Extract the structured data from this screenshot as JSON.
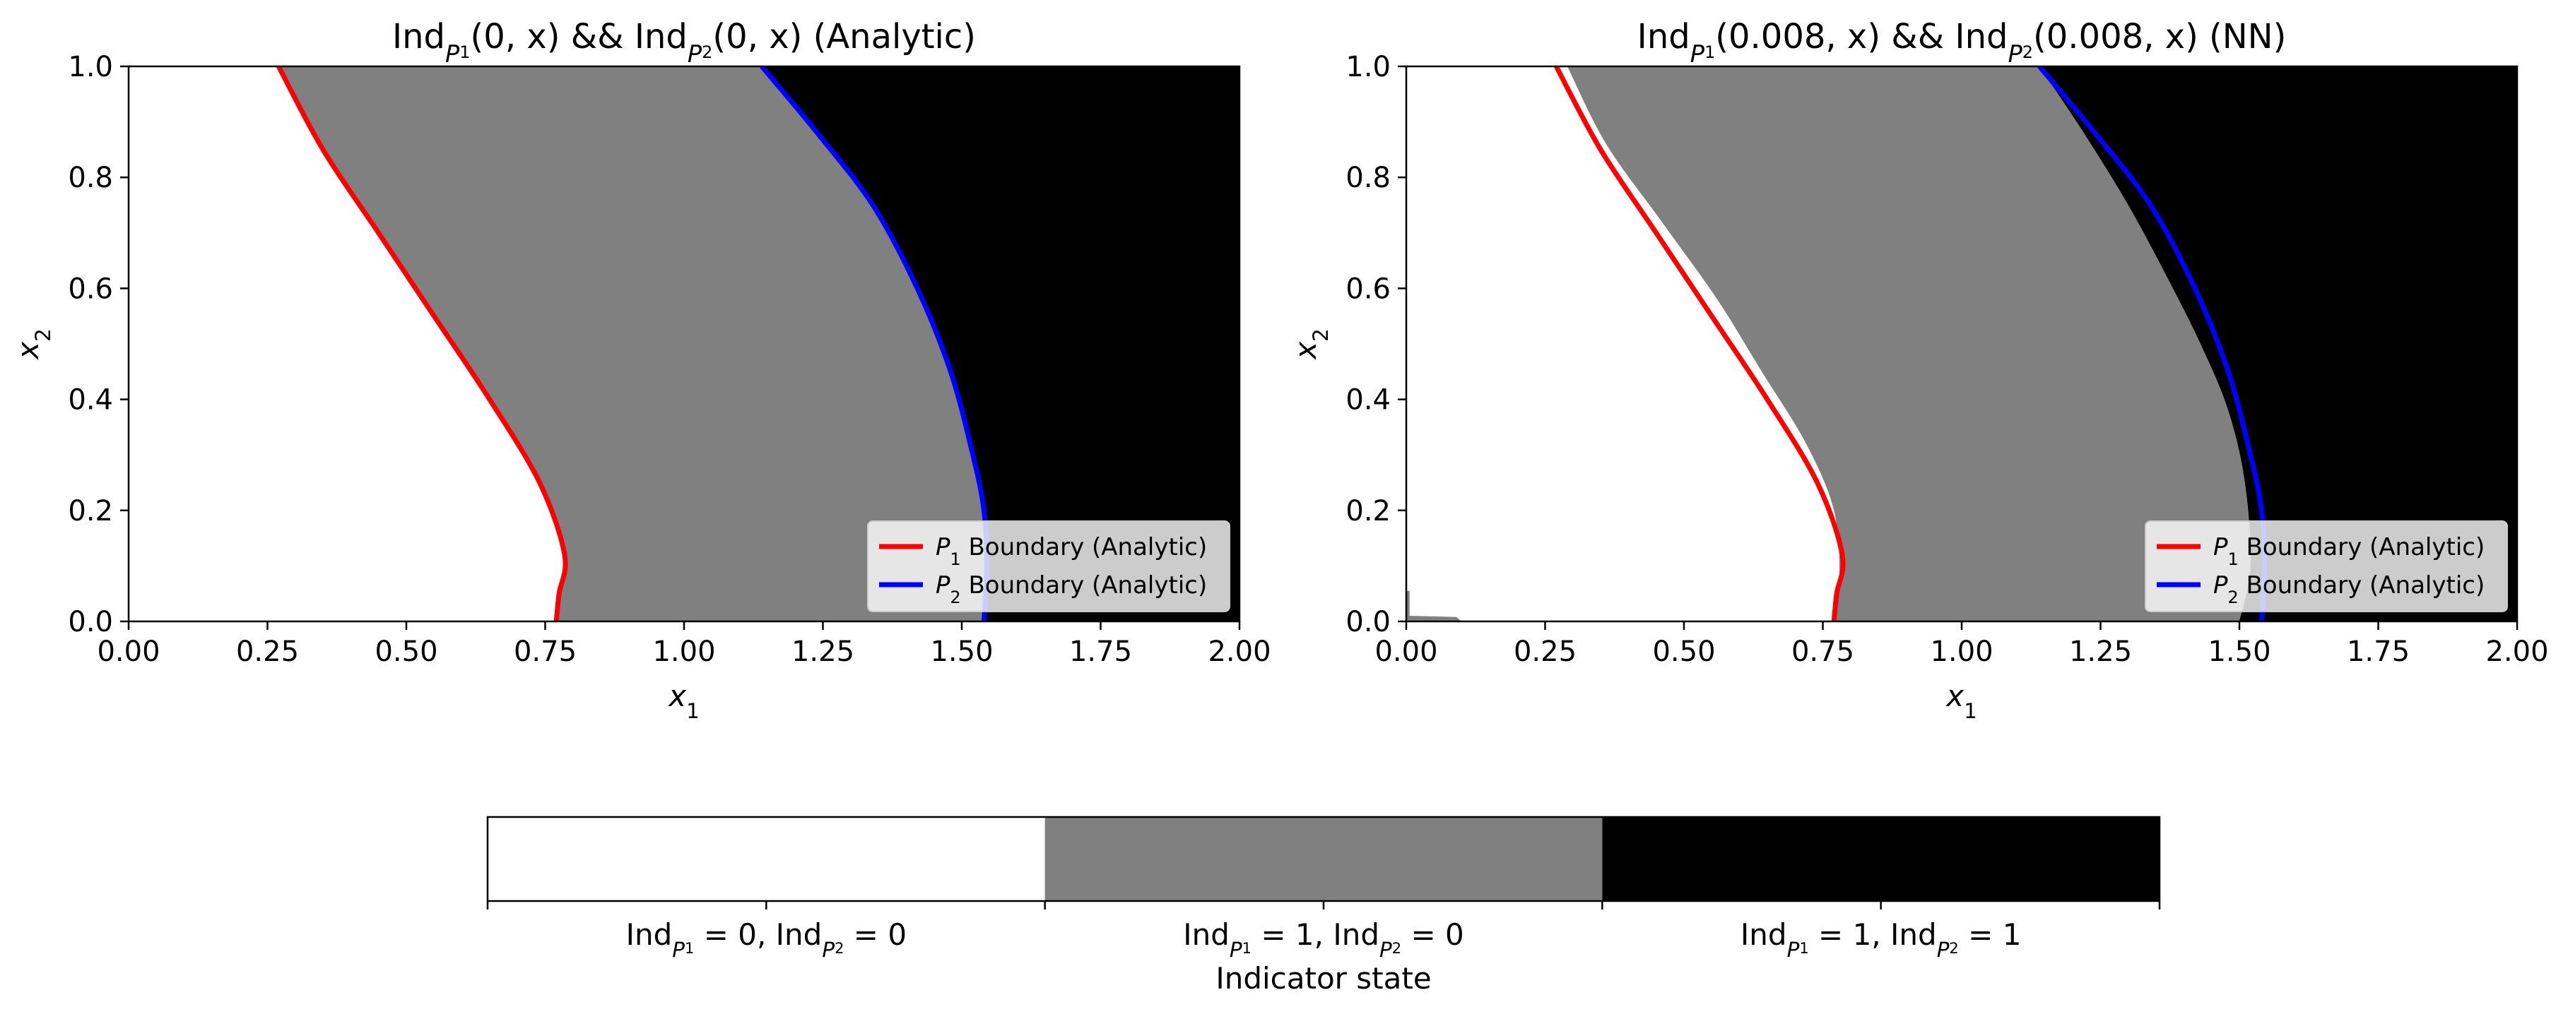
{
  "chart_data": [
    {
      "type": "heatmap",
      "title": "Ind_{P_1}(0, x) && Ind_{P_2}(0, x) (Analytic)",
      "xlabel": "x_1",
      "ylabel": "x_2",
      "xlim": [
        0,
        2
      ],
      "ylim": [
        0,
        1
      ],
      "xticks": [
        "0.00",
        "0.25",
        "0.50",
        "0.75",
        "1.00",
        "1.25",
        "1.50",
        "1.75",
        "2.00"
      ],
      "yticks": [
        "0.0",
        "0.2",
        "0.4",
        "0.6",
        "0.8",
        "1.0"
      ],
      "grid": false,
      "legend_position": "lower-right",
      "series": [
        {
          "name": "P_1 Boundary (Analytic)",
          "color": "#ff0000",
          "x": [
            0.77,
            0.775,
            0.785,
            0.74,
            0.65,
            0.55,
            0.45,
            0.35,
            0.27
          ],
          "y": [
            0.0,
            0.05,
            0.12,
            0.25,
            0.4,
            0.55,
            0.7,
            0.85,
            1.0
          ]
        },
        {
          "name": "P_2 Boundary (Analytic)",
          "color": "#0000ff",
          "x": [
            1.54,
            1.545,
            1.54,
            1.52,
            1.48,
            1.42,
            1.34,
            1.24,
            1.14
          ],
          "y": [
            0.0,
            0.1,
            0.2,
            0.3,
            0.45,
            0.6,
            0.75,
            0.88,
            1.0
          ]
        }
      ],
      "regions": [
        "white",
        "gray",
        "black"
      ]
    },
    {
      "type": "heatmap",
      "title": "Ind_{P_1}(0.008, x) && Ind_{P_2}(0.008, x) (NN)",
      "xlabel": "x_1",
      "ylabel": "x_2",
      "xlim": [
        0,
        2
      ],
      "ylim": [
        0,
        1
      ],
      "xticks": [
        "0.00",
        "0.25",
        "0.50",
        "0.75",
        "1.00",
        "1.25",
        "1.50",
        "1.75",
        "2.00"
      ],
      "yticks": [
        "0.0",
        "0.2",
        "0.4",
        "0.6",
        "0.8",
        "1.0"
      ],
      "grid": false,
      "legend_position": "lower-right",
      "series": [
        {
          "name": "P_1 Boundary (Analytic)",
          "color": "#ff0000",
          "x": [
            0.77,
            0.775,
            0.785,
            0.74,
            0.65,
            0.55,
            0.45,
            0.35,
            0.27
          ],
          "y": [
            0.0,
            0.05,
            0.12,
            0.25,
            0.4,
            0.55,
            0.7,
            0.85,
            1.0
          ]
        },
        {
          "name": "P_2 Boundary (Analytic)",
          "color": "#0000ff",
          "x": [
            1.54,
            1.545,
            1.54,
            1.52,
            1.48,
            1.42,
            1.34,
            1.24,
            1.14
          ],
          "y": [
            0.0,
            0.1,
            0.2,
            0.3,
            0.45,
            0.6,
            0.75,
            0.88,
            1.0
          ]
        }
      ],
      "nn_region_boundaries": {
        "p1": {
          "x": [
            0.77,
            0.78,
            0.77,
            0.72,
            0.64,
            0.56,
            0.46,
            0.36,
            0.29
          ],
          "y": [
            0.0,
            0.08,
            0.2,
            0.32,
            0.45,
            0.58,
            0.72,
            0.86,
            1.0
          ]
        },
        "p2": {
          "x": [
            1.5,
            1.52,
            1.51,
            1.48,
            1.43,
            1.37,
            1.3,
            1.22,
            1.14
          ],
          "y": [
            0.0,
            0.1,
            0.25,
            0.38,
            0.5,
            0.62,
            0.75,
            0.88,
            1.0
          ]
        }
      },
      "regions": [
        "white",
        "gray",
        "black"
      ]
    }
  ],
  "colorbar": {
    "label": "Indicator state",
    "segments": [
      {
        "label": "Ind_{P_1} = 0, Ind_{P_2} = 0",
        "color": "#ffffff"
      },
      {
        "label": "Ind_{P_1} = 1, Ind_{P_2} = 0",
        "color": "#808080"
      },
      {
        "label": "Ind_{P_1} = 1, Ind_{P_2} = 1",
        "color": "#000000"
      }
    ]
  }
}
